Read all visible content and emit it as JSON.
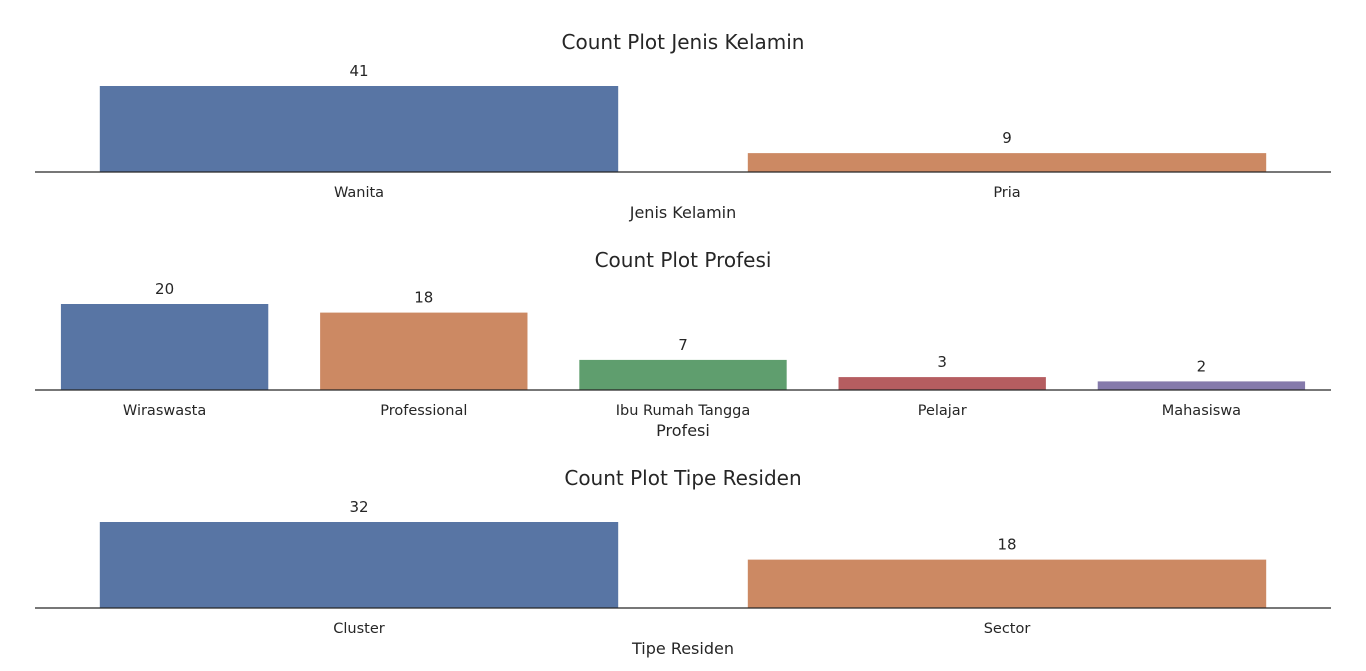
{
  "chart_data": [
    {
      "type": "bar",
      "title": "Count Plot Jenis Kelamin",
      "xlabel": "Jenis Kelamin",
      "ylabel": "",
      "categories": [
        "Wanita",
        "Pria"
      ],
      "values": [
        41,
        9
      ],
      "data_labels": [
        "41",
        "9"
      ],
      "colors": [
        "#5875a4",
        "#cc8963"
      ],
      "ylim": [
        0,
        41
      ],
      "grid": false,
      "legend": "none"
    },
    {
      "type": "bar",
      "title": "Count Plot Profesi",
      "xlabel": "Profesi",
      "ylabel": "",
      "categories": [
        "Wiraswasta",
        "Professional",
        "Ibu Rumah Tangga",
        "Pelajar",
        "Mahasiswa"
      ],
      "values": [
        20,
        18,
        7,
        3,
        2
      ],
      "data_labels": [
        "20",
        "18",
        "7",
        "3",
        "2"
      ],
      "colors": [
        "#5875a4",
        "#cc8963",
        "#5f9e6e",
        "#b55d60",
        "#857aab"
      ],
      "ylim": [
        0,
        20
      ],
      "grid": false,
      "legend": "none"
    },
    {
      "type": "bar",
      "title": "Count Plot Tipe Residen",
      "xlabel": "Tipe Residen",
      "ylabel": "",
      "categories": [
        "Cluster",
        "Sector"
      ],
      "values": [
        32,
        18
      ],
      "data_labels": [
        "32",
        "18"
      ],
      "colors": [
        "#5875a4",
        "#cc8963"
      ],
      "ylim": [
        0,
        32
      ],
      "grid": false,
      "legend": "none"
    }
  ]
}
